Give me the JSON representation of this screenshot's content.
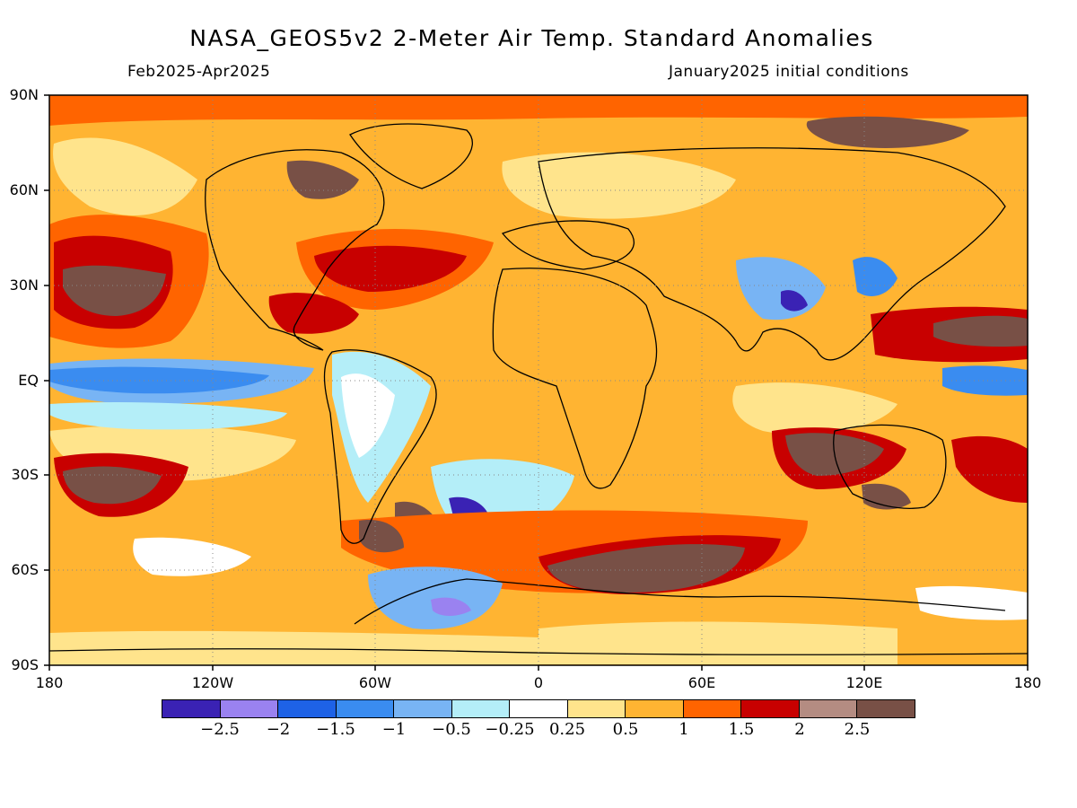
{
  "title": "NASA_GEOS5v2 2-Meter Air Temp. Standard Anomalies",
  "subtitle_left": "Feb2025-Apr2025",
  "subtitle_right": "January2025 initial conditions",
  "map": {
    "type": "global-lat-lon-anomaly-map",
    "lat_labels": [
      "90N",
      "60N",
      "30N",
      "EQ",
      "30S",
      "60S",
      "90S"
    ],
    "lon_labels": [
      "180",
      "120W",
      "60W",
      "0",
      "60E",
      "120E",
      "180"
    ],
    "gridlines": "dotted at 30-degree intervals",
    "coastlines": true,
    "dominant_pattern": "widespread warm anomalies; cool anomalies along equatorial Pacific and parts of South America, India/China, Southern Ocean near 0-60W"
  },
  "colorbar": {
    "colors": [
      "#3a22b4",
      "#9a82f0",
      "#1e62e6",
      "#3a8cf0",
      "#78b4f4",
      "#b4eef8",
      "#ffffff",
      "#ffe48c",
      "#ffb432",
      "#ff6400",
      "#c80000",
      "#b48c82",
      "#785046"
    ],
    "labels": [
      "−2.5",
      "−2",
      "−1.5",
      "−1",
      "−0.5",
      "−0.25",
      "0.25",
      "0.5",
      "1",
      "1.5",
      "2",
      "2.5"
    ]
  }
}
